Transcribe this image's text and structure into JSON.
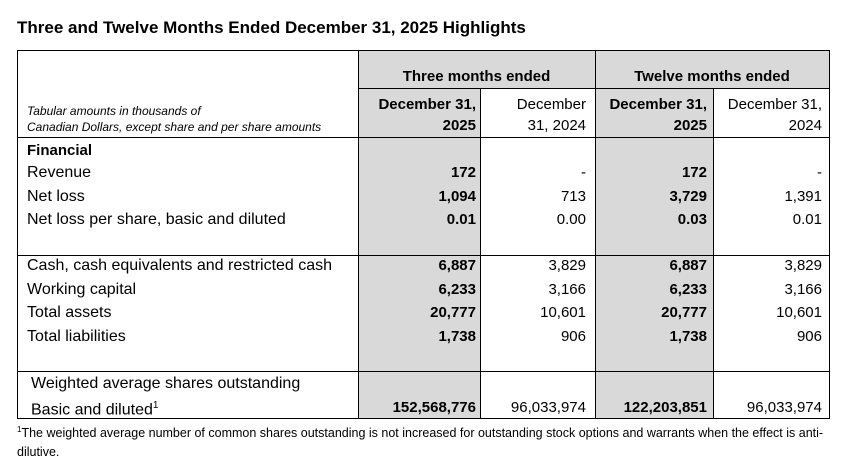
{
  "title": "Three and Twelve Months Ended December 31, 2025 Highlights",
  "table": {
    "group_headers": [
      "Three months ended",
      "Twelve months ended"
    ],
    "note": [
      "Tabular amounts in thousands of",
      "Canadian Dollars, except share and per share amounts"
    ],
    "columns": [
      [
        "December 31,",
        "2025"
      ],
      [
        "December",
        "31, 2024"
      ],
      [
        "December 31,",
        "2025"
      ],
      [
        "December 31,",
        "2024"
      ]
    ],
    "sections": [
      {
        "heading": "Financial",
        "rows": [
          {
            "label": [
              "Revenue"
            ],
            "values": [
              "172",
              "-",
              "172",
              "-"
            ]
          },
          {
            "label": [
              "Net loss"
            ],
            "values": [
              "1,094",
              "713",
              "3,729",
              "1,391"
            ]
          },
          {
            "label": [
              "Net loss per share, basic and diluted"
            ],
            "values": [
              "0.01",
              "0.00",
              "0.03",
              "0.01"
            ]
          }
        ]
      },
      {
        "rows": [
          {
            "label": [
              "Cash, cash equivalents and restricted cash"
            ],
            "values": [
              "6,887",
              "3,829",
              "6,887",
              "3,829"
            ]
          },
          {
            "label": [
              "Working capital"
            ],
            "values": [
              "6,233",
              "3,166",
              "6,233",
              "3,166"
            ]
          },
          {
            "label": [
              "Total assets"
            ],
            "values": [
              "20,777",
              "10,601",
              "20,777",
              "10,601"
            ]
          },
          {
            "label": [
              "Total liabilities"
            ],
            "values": [
              "1,738",
              "906",
              "1,738",
              "906"
            ]
          }
        ]
      },
      {
        "rows": [
          {
            "label": [
              "Weighted average shares outstanding",
              "Basic and diluted"
            ],
            "label_sup": "1",
            "values": [
              "152,568,776",
              "96,033,974",
              "122,203,851",
              "96,033,974"
            ]
          }
        ]
      }
    ],
    "footnote": {
      "marker": "1",
      "text": "The weighted average number of common shares outstanding is not increased for outstanding stock options and warrants when the effect is anti-dilutive."
    }
  }
}
